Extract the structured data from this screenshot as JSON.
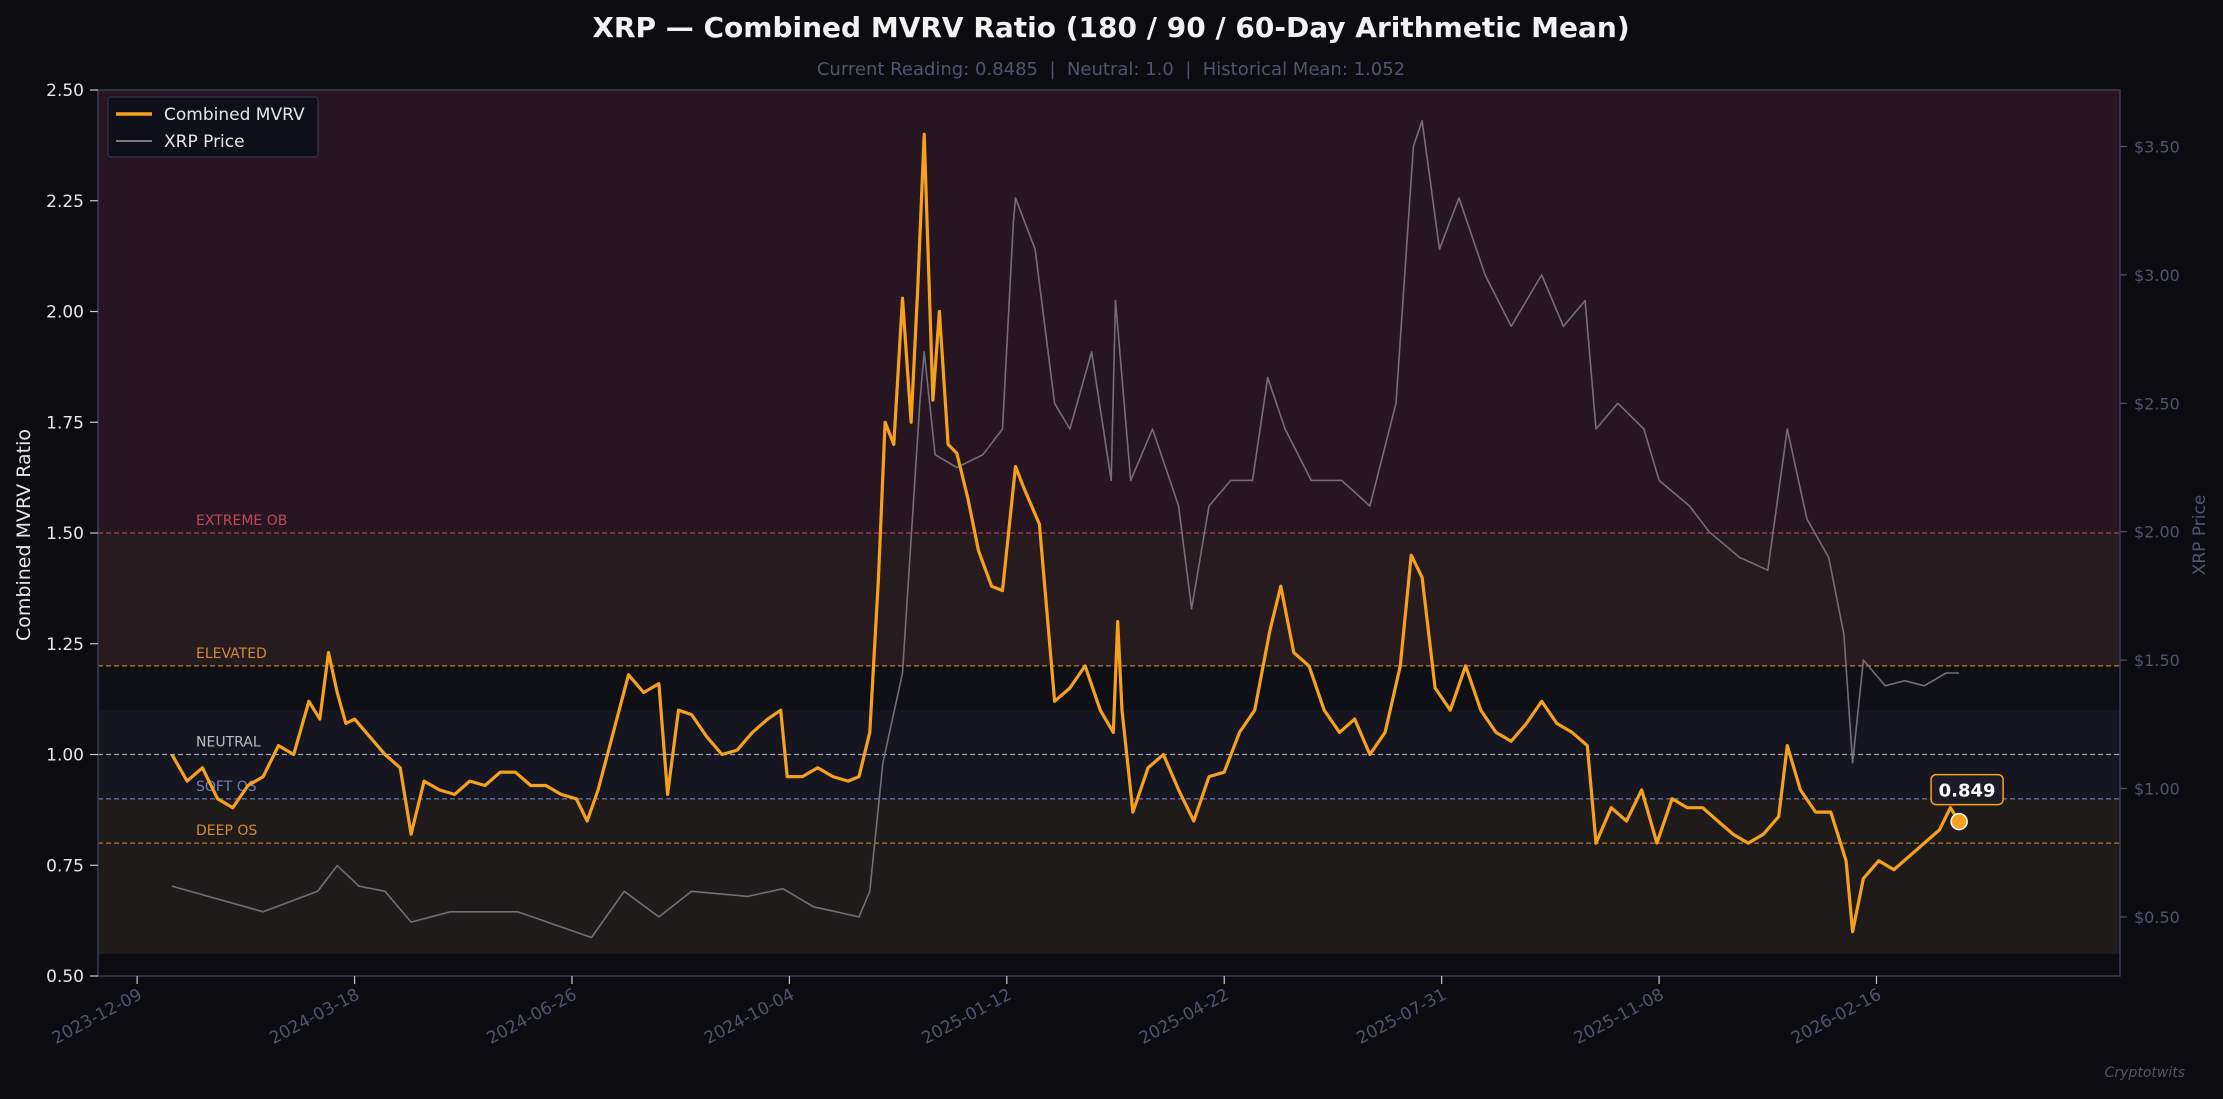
{
  "chart_data": {
    "type": "line",
    "title": "XRP — Combined MVRV Ratio (180 / 90 / 60-Day Arithmetic Mean)",
    "subtitle": "Current Reading: 0.8485  |  Neutral: 1.0  |  Historical Mean: 1.052",
    "ylabel": "Combined MVRV Ratio",
    "ylabel_right": "XRP Price",
    "ylim": [
      0.5,
      2.5
    ],
    "ylim_right": [
      0.27,
      3.72
    ],
    "xlim": [
      "2023-11-21",
      "2026-06-08"
    ],
    "grid": false,
    "legend_position": "top-left",
    "x_ticks": [
      "2023-12-09",
      "2024-03-18",
      "2024-06-26",
      "2024-10-04",
      "2025-01-12",
      "2025-04-22",
      "2025-07-31",
      "2025-11-08",
      "2026-02-16"
    ],
    "y_ticks": [
      "0.50",
      "0.75",
      "1.00",
      "1.25",
      "1.50",
      "1.75",
      "2.00",
      "2.25",
      "2.50"
    ],
    "y_ticks_right": [
      "$0.50",
      "$1.00",
      "$1.50",
      "$2.00",
      "$2.50",
      "$3.00",
      "$3.50"
    ],
    "y_ticks_right_values": [
      0.5,
      1.0,
      1.5,
      2.0,
      2.5,
      3.0,
      3.5
    ],
    "zones": [
      {
        "from": 1.5,
        "to": 2.5,
        "color": "#261621"
      },
      {
        "from": 1.2,
        "to": 1.5,
        "color": "#261c1f"
      },
      {
        "from": 1.1,
        "to": 1.2,
        "color": "#0f0f16"
      },
      {
        "from": 0.9,
        "to": 1.1,
        "color": "#161620"
      },
      {
        "from": 0.55,
        "to": 0.9,
        "color": "#1f1b1a"
      }
    ],
    "reference_lines": [
      {
        "value": 1.5,
        "label": "EXTREME OB",
        "color": "#c5465a"
      },
      {
        "value": 1.2,
        "label": "ELEVATED",
        "color": "#d38a36"
      },
      {
        "value": 1.0,
        "label": "NEUTRAL",
        "color": "#b8bccd"
      },
      {
        "value": 0.9,
        "label": "SOFT OS",
        "color": "#6f7fb8"
      },
      {
        "value": 0.8,
        "label": "DEEP OS",
        "color": "#d38a36"
      }
    ],
    "series": [
      {
        "name": "Combined MVRV",
        "axis": "left",
        "color": "#f5a11e",
        "points": [
          [
            "2023-12-25",
            1.0
          ],
          [
            "2024-01-01",
            0.94
          ],
          [
            "2024-01-08",
            0.97
          ],
          [
            "2024-01-15",
            0.9
          ],
          [
            "2024-01-22",
            0.88
          ],
          [
            "2024-01-29",
            0.93
          ],
          [
            "2024-02-05",
            0.95
          ],
          [
            "2024-02-12",
            1.02
          ],
          [
            "2024-02-19",
            1.0
          ],
          [
            "2024-02-26",
            1.12
          ],
          [
            "2024-03-02",
            1.08
          ],
          [
            "2024-03-06",
            1.23
          ],
          [
            "2024-03-10",
            1.14
          ],
          [
            "2024-03-14",
            1.07
          ],
          [
            "2024-03-18",
            1.08
          ],
          [
            "2024-03-25",
            1.04
          ],
          [
            "2024-04-01",
            1.0
          ],
          [
            "2024-04-08",
            0.97
          ],
          [
            "2024-04-13",
            0.82
          ],
          [
            "2024-04-19",
            0.94
          ],
          [
            "2024-04-26",
            0.92
          ],
          [
            "2024-05-03",
            0.91
          ],
          [
            "2024-05-10",
            0.94
          ],
          [
            "2024-05-17",
            0.93
          ],
          [
            "2024-05-24",
            0.96
          ],
          [
            "2024-05-31",
            0.96
          ],
          [
            "2024-06-07",
            0.93
          ],
          [
            "2024-06-14",
            0.93
          ],
          [
            "2024-06-21",
            0.91
          ],
          [
            "2024-06-28",
            0.9
          ],
          [
            "2024-07-03",
            0.85
          ],
          [
            "2024-07-08",
            0.92
          ],
          [
            "2024-07-15",
            1.05
          ],
          [
            "2024-07-22",
            1.18
          ],
          [
            "2024-07-29",
            1.14
          ],
          [
            "2024-08-05",
            1.16
          ],
          [
            "2024-08-09",
            0.91
          ],
          [
            "2024-08-14",
            1.1
          ],
          [
            "2024-08-20",
            1.09
          ],
          [
            "2024-08-27",
            1.04
          ],
          [
            "2024-09-03",
            1.0
          ],
          [
            "2024-09-10",
            1.01
          ],
          [
            "2024-09-17",
            1.05
          ],
          [
            "2024-09-24",
            1.08
          ],
          [
            "2024-09-30",
            1.1
          ],
          [
            "2024-10-03",
            0.95
          ],
          [
            "2024-10-10",
            0.95
          ],
          [
            "2024-10-17",
            0.97
          ],
          [
            "2024-10-24",
            0.95
          ],
          [
            "2024-10-31",
            0.94
          ],
          [
            "2024-11-05",
            0.95
          ],
          [
            "2024-11-10",
            1.05
          ],
          [
            "2024-11-14",
            1.4
          ],
          [
            "2024-11-17",
            1.75
          ],
          [
            "2024-11-21",
            1.7
          ],
          [
            "2024-11-25",
            2.03
          ],
          [
            "2024-11-29",
            1.75
          ],
          [
            "2024-12-02",
            2.05
          ],
          [
            "2024-12-05",
            2.4
          ],
          [
            "2024-12-09",
            1.8
          ],
          [
            "2024-12-12",
            2.0
          ],
          [
            "2024-12-16",
            1.7
          ],
          [
            "2024-12-20",
            1.68
          ],
          [
            "2024-12-25",
            1.58
          ],
          [
            "2024-12-30",
            1.46
          ],
          [
            "2025-01-05",
            1.38
          ],
          [
            "2025-01-10",
            1.37
          ],
          [
            "2025-01-16",
            1.65
          ],
          [
            "2025-01-20",
            1.6
          ],
          [
            "2025-01-27",
            1.52
          ],
          [
            "2025-02-03",
            1.12
          ],
          [
            "2025-02-10",
            1.15
          ],
          [
            "2025-02-17",
            1.2
          ],
          [
            "2025-02-24",
            1.1
          ],
          [
            "2025-03-02",
            1.05
          ],
          [
            "2025-03-04",
            1.3
          ],
          [
            "2025-03-06",
            1.1
          ],
          [
            "2025-03-11",
            0.87
          ],
          [
            "2025-03-18",
            0.97
          ],
          [
            "2025-03-25",
            1.0
          ],
          [
            "2025-04-01",
            0.92
          ],
          [
            "2025-04-08",
            0.85
          ],
          [
            "2025-04-15",
            0.95
          ],
          [
            "2025-04-22",
            0.96
          ],
          [
            "2025-04-29",
            1.05
          ],
          [
            "2025-05-06",
            1.1
          ],
          [
            "2025-05-13",
            1.28
          ],
          [
            "2025-05-18",
            1.38
          ],
          [
            "2025-05-24",
            1.23
          ],
          [
            "2025-05-31",
            1.2
          ],
          [
            "2025-06-07",
            1.1
          ],
          [
            "2025-06-14",
            1.05
          ],
          [
            "2025-06-21",
            1.08
          ],
          [
            "2025-06-28",
            1.0
          ],
          [
            "2025-07-05",
            1.05
          ],
          [
            "2025-07-12",
            1.2
          ],
          [
            "2025-07-17",
            1.45
          ],
          [
            "2025-07-22",
            1.4
          ],
          [
            "2025-07-28",
            1.15
          ],
          [
            "2025-08-04",
            1.1
          ],
          [
            "2025-08-11",
            1.2
          ],
          [
            "2025-08-18",
            1.1
          ],
          [
            "2025-08-25",
            1.05
          ],
          [
            "2025-09-01",
            1.03
          ],
          [
            "2025-09-08",
            1.07
          ],
          [
            "2025-09-15",
            1.12
          ],
          [
            "2025-09-22",
            1.07
          ],
          [
            "2025-09-29",
            1.05
          ],
          [
            "2025-10-06",
            1.02
          ],
          [
            "2025-10-10",
            0.8
          ],
          [
            "2025-10-17",
            0.88
          ],
          [
            "2025-10-24",
            0.85
          ],
          [
            "2025-10-31",
            0.92
          ],
          [
            "2025-11-07",
            0.8
          ],
          [
            "2025-11-14",
            0.9
          ],
          [
            "2025-11-21",
            0.88
          ],
          [
            "2025-11-28",
            0.88
          ],
          [
            "2025-12-05",
            0.85
          ],
          [
            "2025-12-12",
            0.82
          ],
          [
            "2025-12-19",
            0.8
          ],
          [
            "2025-12-26",
            0.82
          ],
          [
            "2026-01-02",
            0.86
          ],
          [
            "2026-01-06",
            1.02
          ],
          [
            "2026-01-12",
            0.92
          ],
          [
            "2026-01-19",
            0.87
          ],
          [
            "2026-01-26",
            0.87
          ],
          [
            "2026-02-02",
            0.76
          ],
          [
            "2026-02-05",
            0.6
          ],
          [
            "2026-02-10",
            0.72
          ],
          [
            "2026-02-17",
            0.76
          ],
          [
            "2026-02-24",
            0.74
          ],
          [
            "2026-03-03",
            0.77
          ],
          [
            "2026-03-10",
            0.8
          ],
          [
            "2026-03-17",
            0.83
          ],
          [
            "2026-03-22",
            0.88
          ],
          [
            "2026-03-26",
            0.8485
          ]
        ]
      },
      {
        "name": "XRP Price",
        "axis": "right",
        "color": "#7d7884",
        "points": [
          [
            "2023-12-25",
            0.62
          ],
          [
            "2024-01-15",
            0.57
          ],
          [
            "2024-02-05",
            0.52
          ],
          [
            "2024-03-01",
            0.6
          ],
          [
            "2024-03-10",
            0.7
          ],
          [
            "2024-03-20",
            0.62
          ],
          [
            "2024-04-01",
            0.6
          ],
          [
            "2024-04-13",
            0.48
          ],
          [
            "2024-05-01",
            0.52
          ],
          [
            "2024-06-01",
            0.52
          ],
          [
            "2024-07-05",
            0.42
          ],
          [
            "2024-07-20",
            0.6
          ],
          [
            "2024-08-05",
            0.5
          ],
          [
            "2024-08-20",
            0.6
          ],
          [
            "2024-09-15",
            0.58
          ],
          [
            "2024-10-01",
            0.61
          ],
          [
            "2024-10-15",
            0.54
          ],
          [
            "2024-11-05",
            0.5
          ],
          [
            "2024-11-10",
            0.6
          ],
          [
            "2024-11-16",
            1.1
          ],
          [
            "2024-11-25",
            1.45
          ],
          [
            "2024-12-03",
            2.5
          ],
          [
            "2024-12-05",
            2.7
          ],
          [
            "2024-12-10",
            2.3
          ],
          [
            "2024-12-20",
            2.25
          ],
          [
            "2025-01-01",
            2.3
          ],
          [
            "2025-01-10",
            2.4
          ],
          [
            "2025-01-15",
            3.2
          ],
          [
            "2025-01-16",
            3.3
          ],
          [
            "2025-01-25",
            3.1
          ],
          [
            "2025-02-03",
            2.5
          ],
          [
            "2025-02-10",
            2.4
          ],
          [
            "2025-02-20",
            2.7
          ],
          [
            "2025-03-01",
            2.2
          ],
          [
            "2025-03-03",
            2.9
          ],
          [
            "2025-03-10",
            2.2
          ],
          [
            "2025-03-20",
            2.4
          ],
          [
            "2025-04-01",
            2.1
          ],
          [
            "2025-04-07",
            1.7
          ],
          [
            "2025-04-15",
            2.1
          ],
          [
            "2025-04-25",
            2.2
          ],
          [
            "2025-05-05",
            2.2
          ],
          [
            "2025-05-12",
            2.6
          ],
          [
            "2025-05-20",
            2.4
          ],
          [
            "2025-06-01",
            2.2
          ],
          [
            "2025-06-15",
            2.2
          ],
          [
            "2025-06-28",
            2.1
          ],
          [
            "2025-07-10",
            2.5
          ],
          [
            "2025-07-18",
            3.5
          ],
          [
            "2025-07-22",
            3.6
          ],
          [
            "2025-07-30",
            3.1
          ],
          [
            "2025-08-08",
            3.3
          ],
          [
            "2025-08-20",
            3.0
          ],
          [
            "2025-09-01",
            2.8
          ],
          [
            "2025-09-15",
            3.0
          ],
          [
            "2025-09-25",
            2.8
          ],
          [
            "2025-10-05",
            2.9
          ],
          [
            "2025-10-10",
            2.4
          ],
          [
            "2025-10-20",
            2.5
          ],
          [
            "2025-11-01",
            2.4
          ],
          [
            "2025-11-08",
            2.2
          ],
          [
            "2025-11-22",
            2.1
          ],
          [
            "2025-12-01",
            2.0
          ],
          [
            "2025-12-15",
            1.9
          ],
          [
            "2025-12-28",
            1.85
          ],
          [
            "2026-01-06",
            2.4
          ],
          [
            "2026-01-15",
            2.05
          ],
          [
            "2026-01-25",
            1.9
          ],
          [
            "2026-02-01",
            1.6
          ],
          [
            "2026-02-05",
            1.1
          ],
          [
            "2026-02-10",
            1.5
          ],
          [
            "2026-02-20",
            1.4
          ],
          [
            "2026-03-01",
            1.42
          ],
          [
            "2026-03-10",
            1.4
          ],
          [
            "2026-03-20",
            1.45
          ],
          [
            "2026-03-26",
            1.45
          ]
        ]
      }
    ],
    "current_value_label": "0.849",
    "current_point": [
      "2026-03-26",
      0.8485
    ]
  },
  "watermark": "Cryptotwits"
}
